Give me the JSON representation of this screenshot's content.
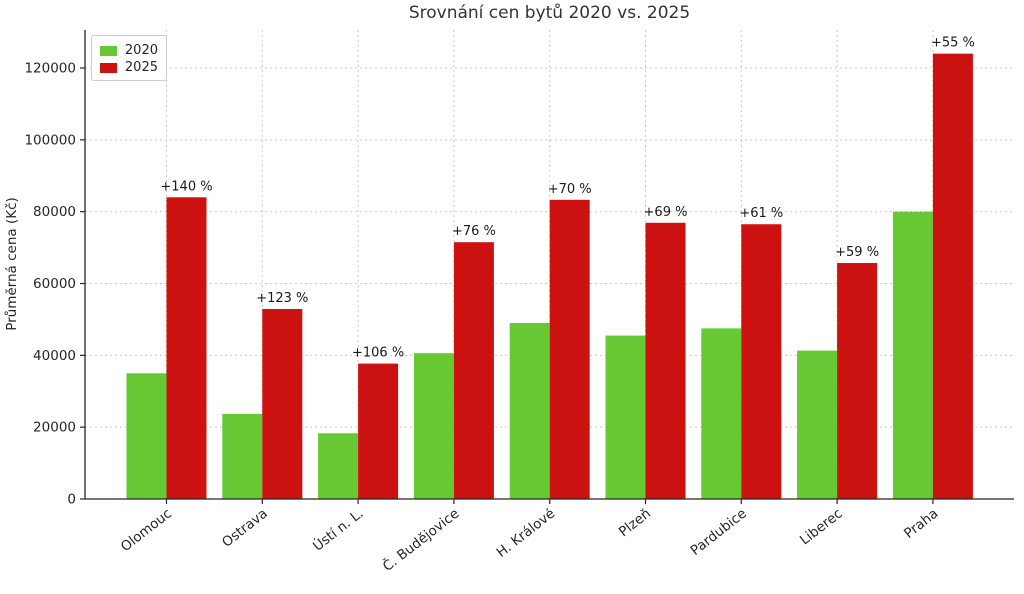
{
  "chart_data": {
    "type": "bar",
    "title": "Srovnání cen bytů 2020 vs. 2025",
    "ylabel": "Průměrná cena (Kč)",
    "xlabel": "",
    "categories": [
      "Olomouc",
      "Ostrava",
      "Ústí n. L.",
      "Č. Budějovice",
      "H. Králové",
      "Plzeň",
      "Pardubice",
      "Liberec",
      "Praha"
    ],
    "series": [
      {
        "name": "2020",
        "color": "#66c832",
        "values": [
          35000,
          23700,
          18300,
          40600,
          49000,
          45500,
          47500,
          41300,
          80000
        ]
      },
      {
        "name": "2025",
        "color": "#cc1111",
        "values": [
          84000,
          52900,
          37700,
          71500,
          83300,
          76900,
          76500,
          65700,
          124000
        ]
      }
    ],
    "annotations": [
      "+140 %",
      "+123 %",
      "+106 %",
      "+76 %",
      "+70 %",
      "+69 %",
      "+61 %",
      "+59 %",
      "+55 %"
    ],
    "yticks": [
      0,
      20000,
      40000,
      60000,
      80000,
      100000,
      120000
    ],
    "ylim": [
      0,
      130500
    ],
    "grid": "dashed",
    "legend_position": "upper-left",
    "colors": {
      "axis": "#262626",
      "grid": "#c9c9c9",
      "text": "#262626",
      "title": "#333333",
      "annotation": "#1a1a1a"
    }
  }
}
